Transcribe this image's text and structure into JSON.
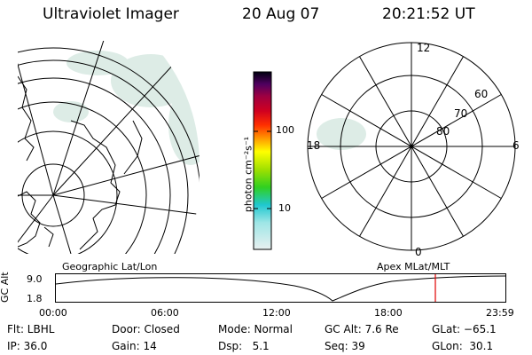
{
  "header": {
    "title": "Ultraviolet Imager",
    "date": "20 Aug 07",
    "time": "20:21:52 UT"
  },
  "colorbar": {
    "unit_label": "photon cm⁻²s⁻¹",
    "ticks": [
      "100",
      "10"
    ]
  },
  "polar": {
    "mlt_labels": {
      "top": "12",
      "bottom": "0",
      "left": "18",
      "right": "6"
    },
    "mlat_labels": [
      "60",
      "70",
      "80"
    ]
  },
  "left_map_label": "Geographic Lat/Lon",
  "right_map_label": "Apex MLat/MLT",
  "strip": {
    "axis_title": "GC Alt",
    "y_ticks": [
      "9.0",
      "1.8"
    ],
    "x_ticks": [
      "00:00",
      "06:00",
      "12:00",
      "18:00",
      "23:59"
    ],
    "current_marker_color": "#e00000"
  },
  "footer": {
    "row1": {
      "flt": "Flt: LBHL",
      "door": "Door: Closed",
      "mode": "Mode: Normal",
      "gcalt": "GC Alt: 7.6 Re",
      "glat": "GLat: −65.1"
    },
    "row2": {
      "ip": "IP: 36.0",
      "gain": "Gain: 14",
      "dsp": "Dsp:   5.1",
      "seq": "Seq: 39",
      "glon": "GLon:  30.1"
    }
  }
}
